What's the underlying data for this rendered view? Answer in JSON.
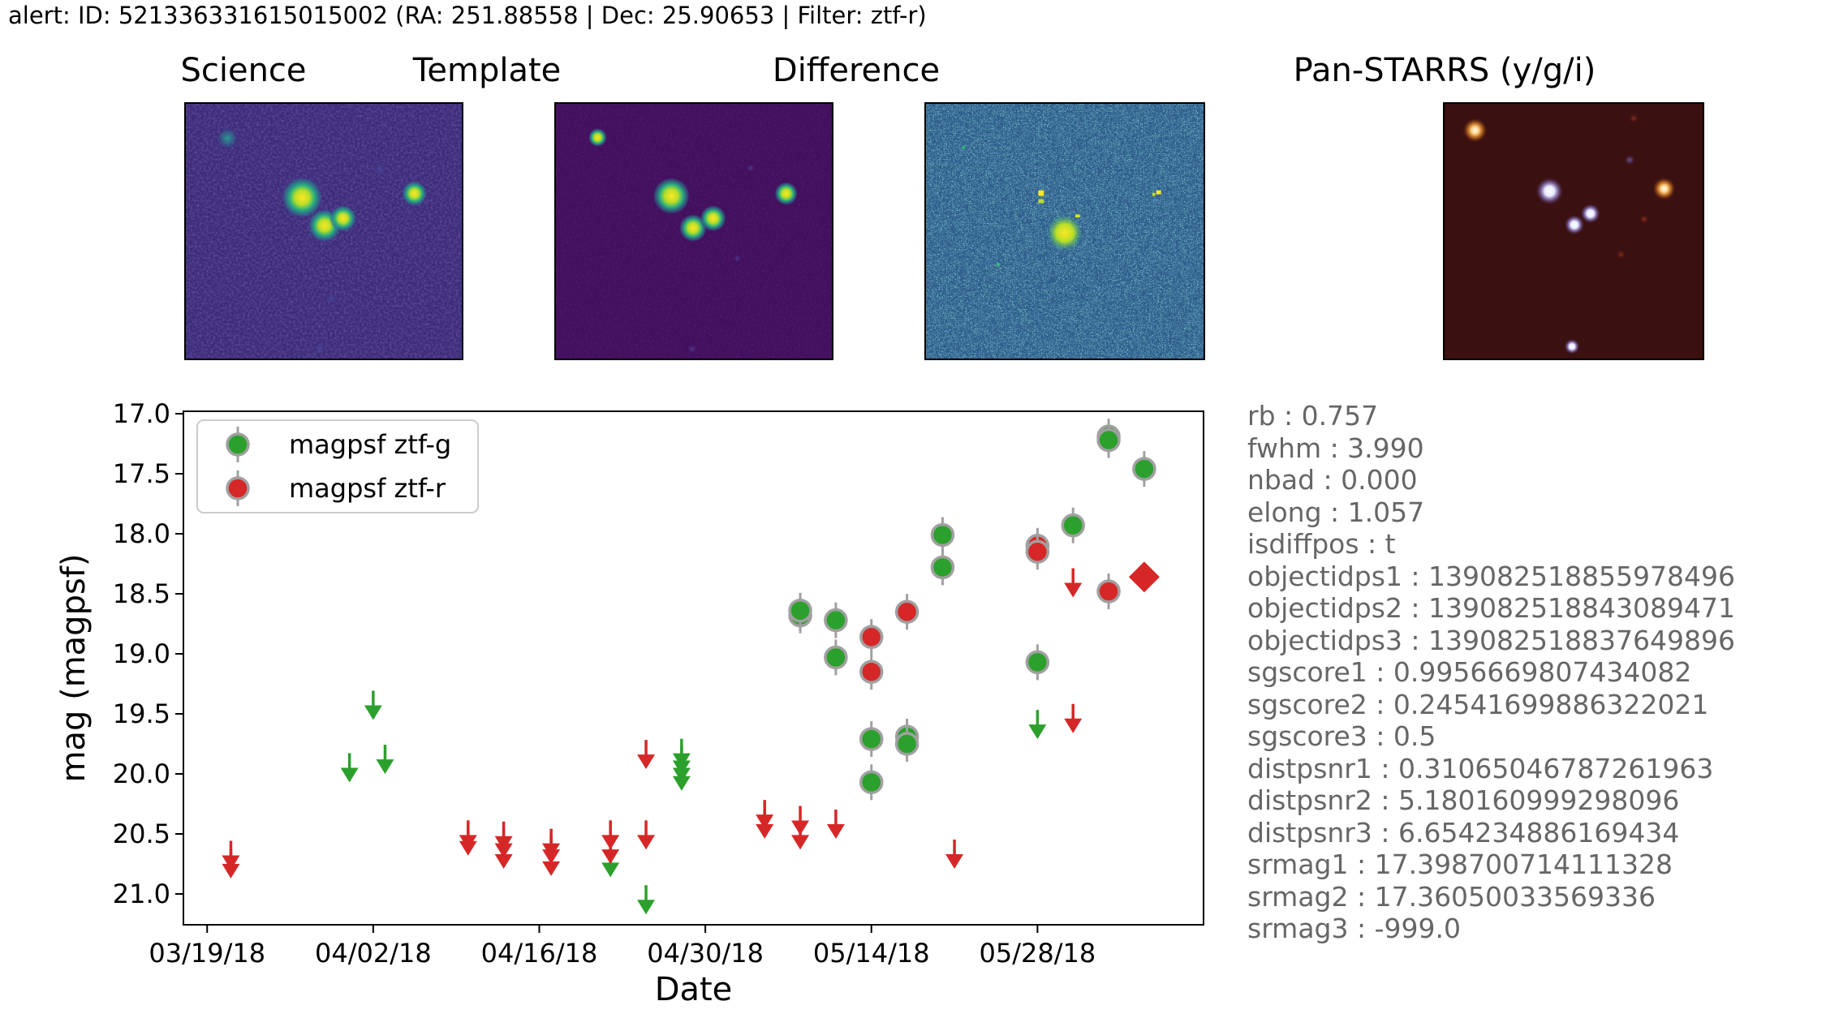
{
  "header": {
    "title": "alert: ID: 521336331615015002 (RA: 251.88558 | Dec: 25.90653 | Filter: ztf-r)"
  },
  "cutouts": [
    {
      "title": "Science"
    },
    {
      "title": "Template"
    },
    {
      "title": "Difference"
    },
    {
      "title": "Pan-STARRS (y/g/i)"
    }
  ],
  "colors": {
    "ztf_g": "#2ca02c",
    "ztf_r": "#d62728",
    "edge": "#a0a0a0",
    "props_text": "#666666"
  },
  "properties": [
    "rb : 0.757",
    "fwhm : 3.990",
    "nbad : 0.000",
    "elong : 1.057",
    "isdiffpos : t",
    "objectidps1 : 139082518855978496",
    "objectidps2 : 139082518843089471",
    "objectidps3 : 139082518837649896",
    "sgscore1 : 0.9956669807434082",
    "sgscore2 : 0.24541699886322021",
    "sgscore3 : 0.5",
    "distpsnr1 : 0.31065046787261963",
    "distpsnr2 : 5.180160999298096",
    "distpsnr3 : 6.654234886169434",
    "srmag1 : 17.398700714111328",
    "srmag2 : 17.36050033569336",
    "srmag3 : -999.0"
  ],
  "chart_data": {
    "type": "scatter",
    "xlabel": "Date",
    "ylabel": "mag (magpsf)",
    "y_inverted": true,
    "ylim": [
      21.25,
      17.0
    ],
    "xlim_day_range": [
      "03/17/18",
      "06/11/18"
    ],
    "x_ticks": [
      "03/19/18",
      "04/02/18",
      "04/16/18",
      "04/30/18",
      "05/14/18",
      "05/28/18"
    ],
    "y_ticks": [
      "17.0",
      "17.5",
      "18.0",
      "18.5",
      "19.0",
      "19.5",
      "20.0",
      "20.5",
      "21.0"
    ],
    "legend": {
      "placement": "top-left",
      "entries": [
        "magpsf ztf-g",
        "magpsf ztf-r"
      ]
    },
    "series": [
      {
        "name": "magpsf ztf-g",
        "filter": "ztf-g",
        "detections": [
          {
            "x": "05/08/18",
            "y": 18.68
          },
          {
            "x": "05/08/18",
            "y": 18.64
          },
          {
            "x": "05/11/18",
            "y": 18.72
          },
          {
            "x": "05/11/18",
            "y": 19.03
          },
          {
            "x": "05/14/18",
            "y": 19.71
          },
          {
            "x": "05/14/18",
            "y": 20.07
          },
          {
            "x": "05/17/18",
            "y": 19.69
          },
          {
            "x": "05/17/18",
            "y": 19.75
          },
          {
            "x": "05/20/18",
            "y": 18.01
          },
          {
            "x": "05/20/18",
            "y": 18.28
          },
          {
            "x": "05/28/18",
            "y": 19.07
          },
          {
            "x": "05/31/18",
            "y": 17.93
          },
          {
            "x": "06/03/18",
            "y": 17.19
          },
          {
            "x": "06/03/18",
            "y": 17.22
          },
          {
            "x": "06/06/18",
            "y": 17.46
          }
        ],
        "upper_limits": [
          {
            "x": "03/31/18",
            "y": 20.03
          },
          {
            "x": "04/02/18",
            "y": 19.51
          },
          {
            "x": "04/03/18",
            "y": 19.96
          },
          {
            "x": "04/22/18",
            "y": 20.82
          },
          {
            "x": "04/25/18",
            "y": 21.13
          },
          {
            "x": "04/28/18",
            "y": 19.91
          },
          {
            "x": "04/28/18",
            "y": 19.97
          },
          {
            "x": "04/28/18",
            "y": 20.03
          },
          {
            "x": "04/28/18",
            "y": 20.1
          },
          {
            "x": "05/28/18",
            "y": 19.67
          }
        ]
      },
      {
        "name": "magpsf ztf-r",
        "filter": "ztf-r",
        "detections": [
          {
            "x": "05/14/18",
            "y": 18.86
          },
          {
            "x": "05/14/18",
            "y": 19.15
          },
          {
            "x": "05/17/18",
            "y": 18.65
          },
          {
            "x": "05/28/18",
            "y": 18.1
          },
          {
            "x": "05/28/18",
            "y": 18.15
          },
          {
            "x": "06/03/18",
            "y": 18.48
          }
        ],
        "upper_limits": [
          {
            "x": "03/21/18",
            "y": 20.83
          },
          {
            "x": "03/21/18",
            "y": 20.76
          },
          {
            "x": "04/10/18",
            "y": 20.59
          },
          {
            "x": "04/10/18",
            "y": 20.64
          },
          {
            "x": "04/13/18",
            "y": 20.6
          },
          {
            "x": "04/13/18",
            "y": 20.66
          },
          {
            "x": "04/13/18",
            "y": 20.75
          },
          {
            "x": "04/17/18",
            "y": 20.66
          },
          {
            "x": "04/17/18",
            "y": 20.71
          },
          {
            "x": "04/17/18",
            "y": 20.81
          },
          {
            "x": "04/22/18",
            "y": 20.59
          },
          {
            "x": "04/22/18",
            "y": 20.71
          },
          {
            "x": "04/25/18",
            "y": 19.92
          },
          {
            "x": "04/25/18",
            "y": 20.59
          },
          {
            "x": "05/05/18",
            "y": 20.42
          },
          {
            "x": "05/05/18",
            "y": 20.5
          },
          {
            "x": "05/08/18",
            "y": 20.47
          },
          {
            "x": "05/08/18",
            "y": 20.59
          },
          {
            "x": "05/11/18",
            "y": 20.5
          },
          {
            "x": "05/21/18",
            "y": 20.75
          },
          {
            "x": "05/31/18",
            "y": 18.49
          },
          {
            "x": "05/31/18",
            "y": 19.62
          }
        ],
        "current_alert": {
          "x": "06/06/18",
          "y": 18.36
        }
      }
    ]
  }
}
